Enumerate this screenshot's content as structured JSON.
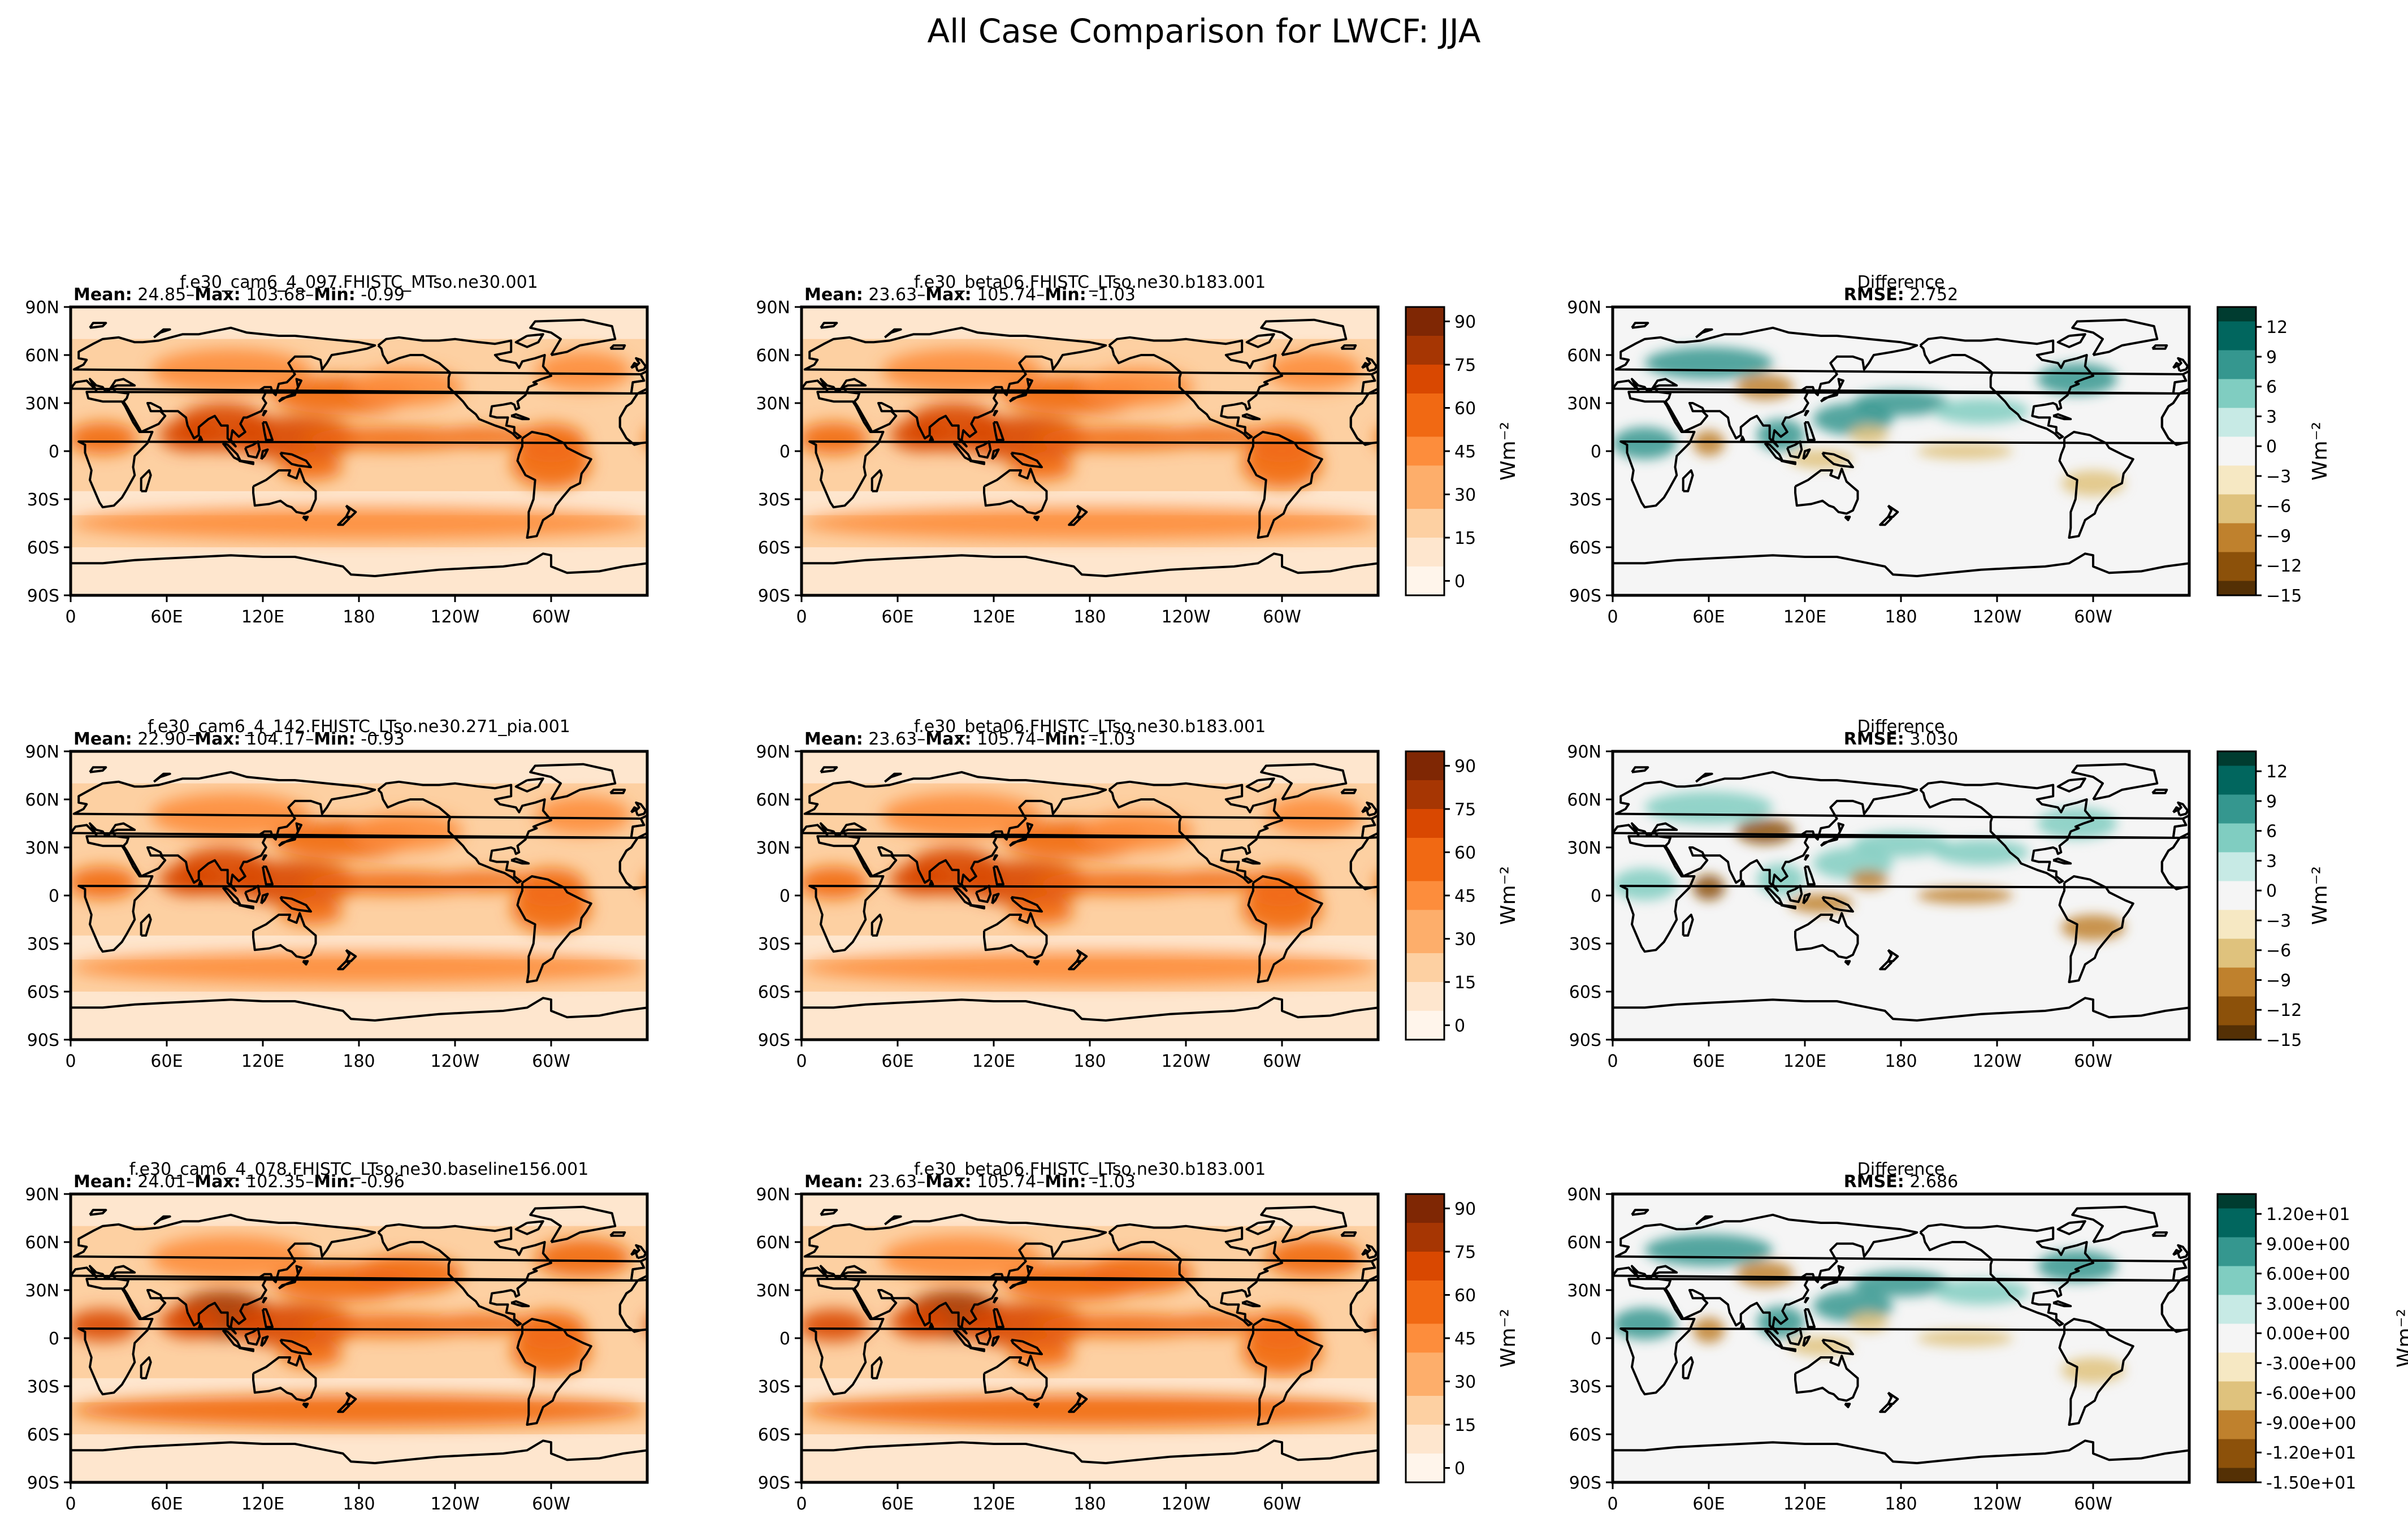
{
  "figure": {
    "title": "All Case Comparison for LWCF: JJA"
  },
  "axes": {
    "lat_ticks": [
      "90N",
      "60N",
      "30N",
      "0",
      "30S",
      "60S",
      "90S"
    ],
    "lon_ticks": [
      "0",
      "60E",
      "120E",
      "180",
      "120W",
      "60W"
    ]
  },
  "colorbars": {
    "field_units": "Wm⁻²",
    "diff_units": "Wm⁻²",
    "field_ticks": [
      "90",
      "75",
      "60",
      "45",
      "30",
      "15",
      "0"
    ],
    "field_range": [
      -5,
      95
    ],
    "diff_range": [
      -15,
      14
    ],
    "diff_ticks_plain": [
      "12",
      "9",
      "6",
      "3",
      "0",
      "−3",
      "−6",
      "−9",
      "−12",
      "−15"
    ],
    "diff_ticks_sci": [
      "1.20e+01",
      "9.00e+00",
      "6.00e+00",
      "3.00e+00",
      "0.00e+00",
      "-3.00e+00",
      "-6.00e+00",
      "-9.00e+00",
      "-1.20e+01",
      "-1.50e+01"
    ],
    "field_colors": [
      "#fff5eb",
      "#fee6ce",
      "#fdd0a2",
      "#fdae6b",
      "#fd8d3c",
      "#f16913",
      "#d94801",
      "#a63603",
      "#7f2704"
    ],
    "diff_colors": [
      "#543005",
      "#8c510a",
      "#bf812d",
      "#dfc27d",
      "#f6e8c3",
      "#f5f5f5",
      "#c7eae5",
      "#80cdc1",
      "#35978f",
      "#01665e",
      "#003c30"
    ]
  },
  "rows": [
    {
      "test": {
        "case": "f.e30_cam6_4_097.FHISTC_MTso.ne30.001",
        "mean": "24.85",
        "max": "103.68",
        "min": "-0.99"
      },
      "baseline": {
        "case": "f.e30_beta06.FHISTC_LTso.ne30.b183.001",
        "mean": "23.63",
        "max": "105.74",
        "min": "-1.03"
      },
      "difference": {
        "title": "Difference",
        "rmse": "2.752"
      }
    },
    {
      "test": {
        "case": "f.e30_cam6_4_142.FHISTC_LTso.ne30.271_pia.001",
        "mean": "22.90",
        "max": "104.17",
        "min": "-0.93"
      },
      "baseline": {
        "case": "f.e30_beta06.FHISTC_LTso.ne30.b183.001",
        "mean": "23.63",
        "max": "105.74",
        "min": "-1.03"
      },
      "difference": {
        "title": "Difference",
        "rmse": "3.030"
      }
    },
    {
      "test": {
        "case": "f.e30_cam6_4_078.FHISTC_LTso.ne30.baseline156.001",
        "mean": "24.01",
        "max": "102.35",
        "min": "-0.96"
      },
      "baseline": {
        "case": "f.e30_beta06.FHISTC_LTso.ne30.b183.001",
        "mean": "23.63",
        "max": "105.74",
        "min": "-1.03"
      },
      "difference": {
        "title": "Difference",
        "rmse": "2.686"
      }
    }
  ],
  "labels": {
    "mean": "Mean:",
    "max": "Max:",
    "min": "Min:",
    "rmse": "RMSE:"
  },
  "chart_data": {
    "type": "heatmap",
    "title": "All Case Comparison for LWCF: JJA",
    "variable": "LWCF",
    "season": "JJA",
    "x_range_deg_east": [
      0,
      360
    ],
    "y_range_deg_north": [
      -90,
      90
    ],
    "field_colorbar_range": [
      -5,
      95
    ],
    "difference_colorbar_range": [
      -15,
      14
    ],
    "panels": [
      {
        "row": 1,
        "kind": "test",
        "mean": 24.85,
        "max": 103.68,
        "min": -0.99
      },
      {
        "row": 1,
        "kind": "baseline",
        "mean": 23.63,
        "max": 105.74,
        "min": -1.03
      },
      {
        "row": 1,
        "kind": "difference",
        "rmse": 2.752
      },
      {
        "row": 2,
        "kind": "test",
        "mean": 22.9,
        "max": 104.17,
        "min": -0.93
      },
      {
        "row": 2,
        "kind": "baseline",
        "mean": 23.63,
        "max": 105.74,
        "min": -1.03
      },
      {
        "row": 2,
        "kind": "difference",
        "rmse": 3.03
      },
      {
        "row": 3,
        "kind": "test",
        "mean": 24.01,
        "max": 102.35,
        "min": -0.96
      },
      {
        "row": 3,
        "kind": "baseline",
        "mean": 23.63,
        "max": 105.74,
        "min": -1.03
      },
      {
        "row": 3,
        "kind": "difference",
        "rmse": 2.686
      }
    ]
  }
}
